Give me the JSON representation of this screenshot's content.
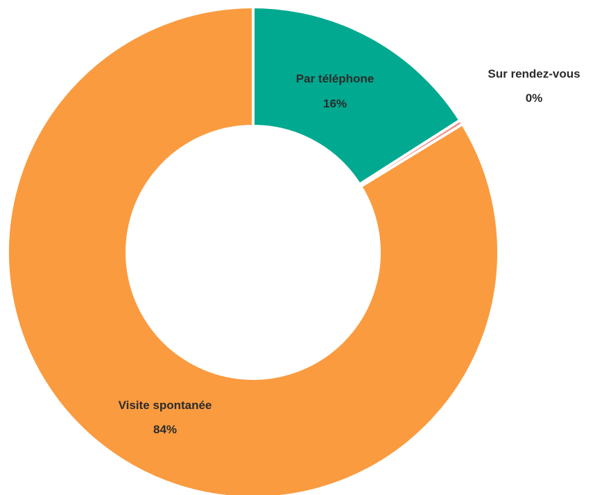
{
  "chart_data": {
    "type": "donut",
    "categories": [
      "Par téléphone",
      "Sur rendez-vous",
      "Visite spontanée"
    ],
    "values": [
      16,
      0.3,
      84
    ],
    "value_labels": [
      "16%",
      "0%",
      "84%"
    ],
    "colors": [
      "#00a98f",
      "#f08a80",
      "#fa9b40"
    ],
    "start_angle": "12 o'clock",
    "direction": "clockwise",
    "legend": "none",
    "title": ""
  }
}
